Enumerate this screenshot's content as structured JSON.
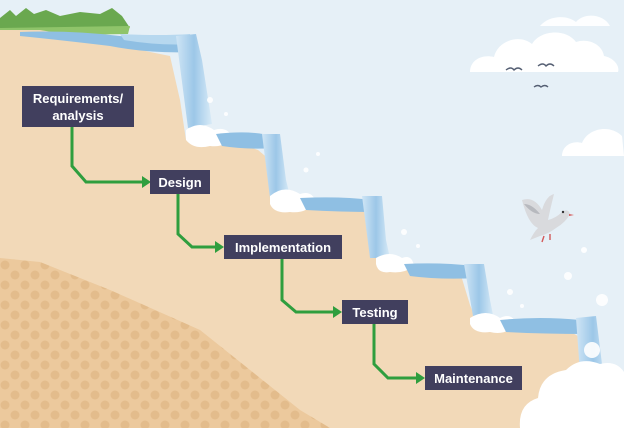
{
  "stages": [
    {
      "line1": "Requirements/",
      "line2": "analysis"
    },
    {
      "label": "Design"
    },
    {
      "label": "Implementation"
    },
    {
      "label": "Testing"
    },
    {
      "label": "Maintenance"
    }
  ],
  "colors": {
    "sky": "#e6f0f7",
    "cliff": "#f2d9b8",
    "cliff_dark": "#ecc99d",
    "grass": "#6aa84f",
    "water": "#8fbfe3",
    "box": "#413f5e",
    "arrow": "#2f9e3e"
  },
  "icons": [
    "cloud-icon",
    "bird-icon",
    "dove-icon",
    "waterfall-icon"
  ]
}
